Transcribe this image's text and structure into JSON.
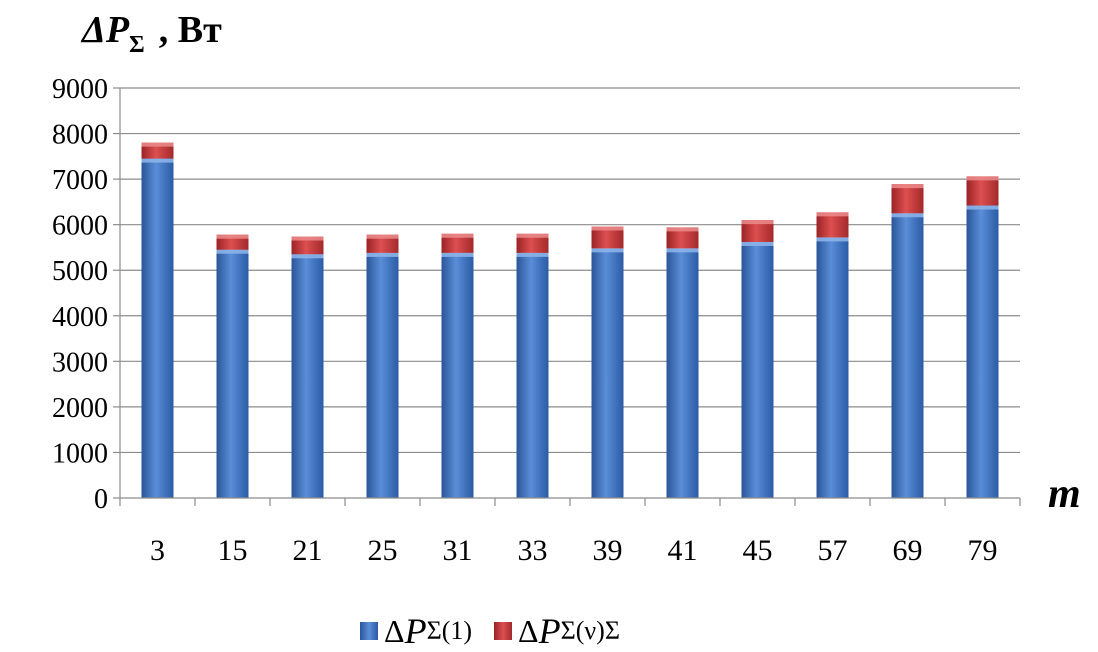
{
  "chart_data": {
    "type": "bar",
    "stacked": true,
    "title": "",
    "ylabel": {
      "symbol": "ΔP",
      "subscript": "Σ",
      "unit": ", Вт"
    },
    "xlabel": "m",
    "categories": [
      "3",
      "15",
      "21",
      "25",
      "31",
      "33",
      "39",
      "41",
      "45",
      "57",
      "69",
      "79"
    ],
    "series": [
      {
        "name": "ΔPΣ(1)",
        "name_prefix": "Δ",
        "name_symbol": "P",
        "name_sub": "Σ(1)",
        "color": "#3f74c4",
        "values": [
          7450,
          5450,
          5350,
          5380,
          5380,
          5380,
          5480,
          5480,
          5620,
          5720,
          6250,
          6420
        ]
      },
      {
        "name": "ΔPΣ(ν)Σ",
        "name_prefix": "Δ",
        "name_symbol": "P",
        "name_sub": "Σ(ν)Σ",
        "color": "#c9383a",
        "values": [
          350,
          330,
          390,
          400,
          420,
          420,
          480,
          460,
          480,
          550,
          640,
          640
        ]
      }
    ],
    "ylim": [
      0,
      9000
    ],
    "yticks": [
      0,
      1000,
      2000,
      3000,
      4000,
      5000,
      6000,
      7000,
      8000,
      9000
    ],
    "grid": true,
    "legend_position": "bottom"
  }
}
